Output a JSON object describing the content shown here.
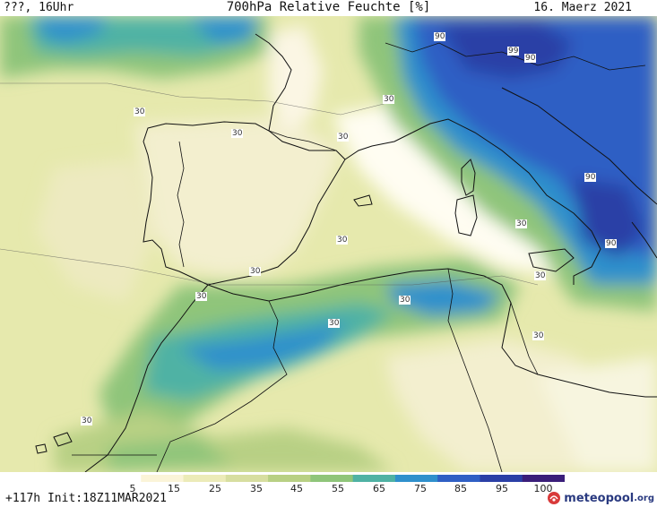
{
  "header": {
    "left": "???, 16Uhr",
    "title": "700hPa Relative Feuchte [%]",
    "date": "16. Maerz 2021"
  },
  "colorbar": {
    "levels": [
      5,
      15,
      25,
      35,
      45,
      55,
      65,
      75,
      85,
      95,
      100
    ],
    "labels": [
      "5",
      "15",
      "25",
      "35",
      "45",
      "55",
      "65",
      "75",
      "85",
      "95",
      "100"
    ],
    "colors": [
      "#ffffff",
      "#fbf4d8",
      "#ecebb8",
      "#d7dea0",
      "#b8d084",
      "#8fc57a",
      "#4fb2a4",
      "#2f90cc",
      "#2f5fc4",
      "#2a3fa6",
      "#3a1e7a"
    ]
  },
  "contour_labels": [
    "90",
    "99",
    "90",
    "30",
    "30",
    "30",
    "30",
    "30",
    "30",
    "30",
    "90",
    "90",
    "30",
    "30",
    "30",
    "30",
    "30",
    "30"
  ],
  "footer": {
    "run": "+117h  Init:18Z11MAR2021",
    "logo": "meteopool",
    "logo_suffix": ".org"
  }
}
